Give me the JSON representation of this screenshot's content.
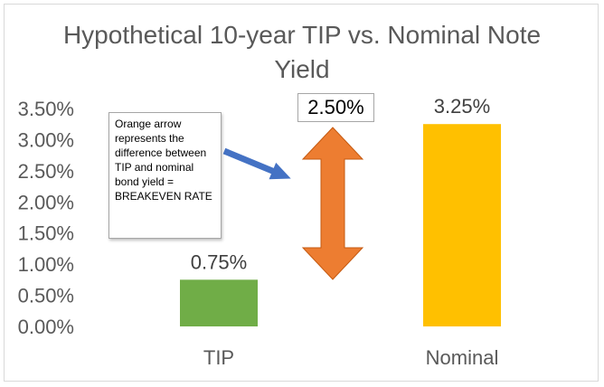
{
  "chart_data": {
    "type": "bar",
    "title": "Hypothetical 10-year TIP vs. Nominal Note Yield",
    "categories": [
      "TIP",
      "Nominal"
    ],
    "values": [
      0.0075,
      0.0325
    ],
    "value_labels": [
      "0.75%",
      "3.25%"
    ],
    "colors": [
      "#70ad47",
      "#ffc000"
    ],
    "ylim": [
      0,
      0.035
    ],
    "yticks": [
      0,
      0.005,
      0.01,
      0.015,
      0.02,
      0.025,
      0.03,
      0.035
    ],
    "ytick_labels": [
      "0.00%",
      "0.50%",
      "1.00%",
      "1.50%",
      "2.00%",
      "2.50%",
      "3.00%",
      "3.50%"
    ],
    "xlabel": "",
    "ylabel": "",
    "grid": false,
    "annotations": {
      "difference_label": "2.50%",
      "arrow_color": "#ed7d31",
      "pointer_color": "#4472c4",
      "callout_text": "Orange arrow represents the difference between TIP and nominal bond yield = BREAKEVEN RATE"
    }
  }
}
